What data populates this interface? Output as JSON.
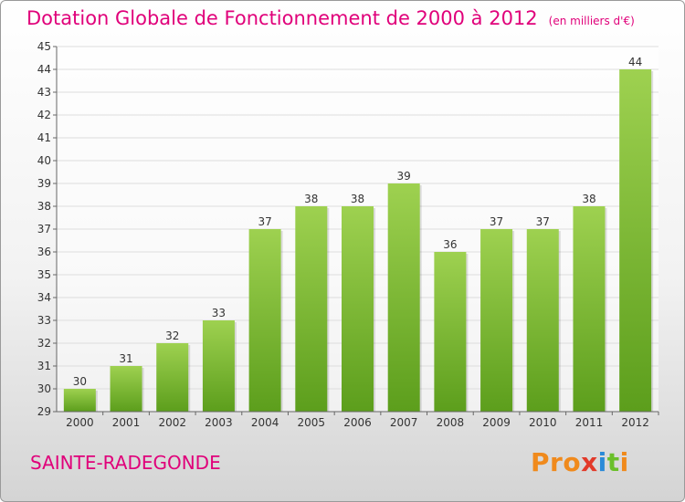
{
  "title": "Dotation Globale de Fonctionnement de 2000 à 2012",
  "unit_note": "(en milliers d'€)",
  "commune": "SAINTE-RADEGONDE",
  "logo": {
    "p1": "Pro",
    "x": "x",
    "i1": "i",
    "t": "t",
    "i2": "i"
  },
  "colors": {
    "title": "#e0007a",
    "bar_top": "#9ed150",
    "bar_bottom": "#5c9e1c",
    "grid": "#dddddd"
  },
  "chart_data": {
    "type": "bar",
    "categories": [
      "2000",
      "2001",
      "2002",
      "2003",
      "2004",
      "2005",
      "2006",
      "2007",
      "2008",
      "2009",
      "2010",
      "2011",
      "2012"
    ],
    "values": [
      30,
      31,
      32,
      33,
      37,
      38,
      38,
      39,
      36,
      37,
      37,
      38,
      44
    ],
    "title": "Dotation Globale de Fonctionnement de 2000 à 2012",
    "xlabel": "",
    "ylabel": "",
    "ylim": [
      29,
      45
    ],
    "yticks": [
      29,
      30,
      31,
      32,
      33,
      34,
      35,
      36,
      37,
      38,
      39,
      40,
      41,
      42,
      43,
      44,
      45
    ],
    "grid": true
  }
}
